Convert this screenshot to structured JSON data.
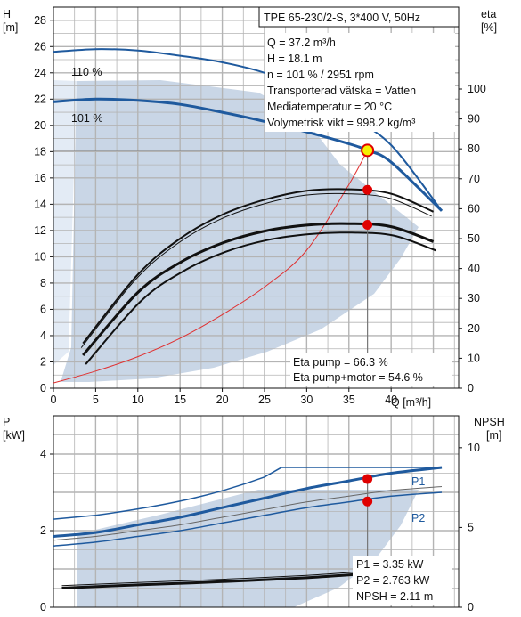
{
  "colors": {
    "grid": "#b4b4b4",
    "region_fill": "#c9d6e6",
    "region_light": "#e3ebf5",
    "curve_blue": "#1f5a9e",
    "system_curve": "#e03030",
    "point_red": "#e00000",
    "point_yellow": "#f5f000"
  },
  "chart_data": [
    {
      "type": "line",
      "title": "TPE 65-230/2-S, 3*400 V, 50Hz",
      "xlabel": "Q [m³/h]",
      "ylabel_unit": "[m]",
      "ylabel": "H",
      "y2label": "eta",
      "y2label_unit": "[%]",
      "xlim": [
        0,
        48
      ],
      "ylim": [
        0,
        29
      ],
      "y2lim": [
        0,
        100
      ],
      "x_ticks": [
        0,
        5,
        10,
        15,
        20,
        25,
        30,
        35,
        40
      ],
      "y_ticks": [
        0,
        2,
        4,
        6,
        8,
        10,
        12,
        14,
        16,
        18,
        20,
        22,
        24,
        26,
        28
      ],
      "y2_ticks": [
        0,
        10,
        20,
        30,
        40,
        50,
        60,
        70,
        80,
        90,
        100
      ],
      "grid": true,
      "curve_labels": [
        "110 %",
        "101 %"
      ],
      "info_lines": [
        "Q = 37.2 m³/h",
        "H = 18.1 m",
        "n = 101 % / 2951 rpm",
        "Transporterad vätska = Vatten",
        "Mediatemperatur = 20 °C",
        "Volymetrisk vikt = 998.2 kg/m³"
      ],
      "eta_lines": [
        "Eta pump = 66.3 %",
        "Eta pump+motor = 54.6 %"
      ],
      "series": [
        {
          "name": "110 %",
          "x": [
            0,
            5,
            10,
            15,
            20,
            25,
            30,
            35,
            40,
            46
          ],
          "y": [
            25.6,
            25.8,
            25.7,
            25.3,
            24.8,
            24.0,
            22.7,
            20.7,
            18.5,
            13.5
          ]
        },
        {
          "name": "101 %",
          "x": [
            0,
            5,
            10,
            15,
            20,
            25,
            30,
            35,
            37.2,
            40,
            46
          ],
          "y": [
            21.8,
            22.0,
            21.9,
            21.6,
            21.0,
            20.3,
            19.5,
            18.6,
            18.1,
            17.2,
            13.5
          ]
        },
        {
          "x": [
            0,
            5,
            10,
            15,
            20,
            25,
            30,
            35,
            37.2
          ],
          "y": [
            0.4,
            1.3,
            2.4,
            3.8,
            5.6,
            7.7,
            10.5,
            15.5,
            18.1
          ]
        },
        {
          "x": [
            3.5,
            10,
            15,
            20,
            25,
            30,
            35,
            40,
            45
          ],
          "y2": [
            15,
            38,
            50,
            58,
            63,
            66,
            66.5,
            65,
            59
          ]
        },
        {
          "x": [
            3.5,
            10,
            15,
            20,
            25,
            30,
            35,
            40,
            45
          ],
          "y2": [
            11,
            32,
            42,
            48.5,
            52.5,
            54.5,
            55,
            54,
            49
          ]
        }
      ],
      "operating_point": {
        "x": 37.2,
        "y": 18.1,
        "eta_pump": 66.3,
        "eta_total": 54.6
      }
    },
    {
      "type": "line",
      "ylabel": "P",
      "ylabel_unit": "[kW]",
      "y2label": "NPSH",
      "y2label_unit": "[m]",
      "xlim": [
        0,
        48
      ],
      "ylim": [
        0,
        5
      ],
      "y2lim": [
        0,
        12
      ],
      "y_ticks": [
        0,
        2,
        4
      ],
      "y2_ticks": [
        0,
        5,
        10
      ],
      "grid": true,
      "curve_labels": [
        "P1",
        "P2"
      ],
      "info_lines": [
        "P1 = 3.35 kW",
        "P2 = 2.763 kW",
        "NPSH = 2.11 m"
      ],
      "series": [
        {
          "name": "P1",
          "x": [
            0,
            5,
            10,
            15,
            20,
            25,
            30,
            35,
            40,
            46
          ],
          "y": [
            1.85,
            1.95,
            2.15,
            2.35,
            2.6,
            2.85,
            3.1,
            3.3,
            3.5,
            3.65
          ]
        },
        {
          "name": "P2",
          "x": [
            0,
            5,
            10,
            15,
            20,
            25,
            30,
            35,
            40,
            46
          ],
          "y": [
            1.6,
            1.7,
            1.85,
            2.0,
            2.2,
            2.4,
            2.6,
            2.75,
            2.9,
            3.0
          ]
        },
        {
          "x": [
            1,
            10,
            20,
            30,
            37.2
          ],
          "y2": [
            1.2,
            1.4,
            1.6,
            1.85,
            2.11
          ]
        }
      ],
      "operating_point": {
        "x": 37.2,
        "P1": 3.35,
        "P2": 2.763,
        "NPSH": 2.11
      }
    }
  ]
}
